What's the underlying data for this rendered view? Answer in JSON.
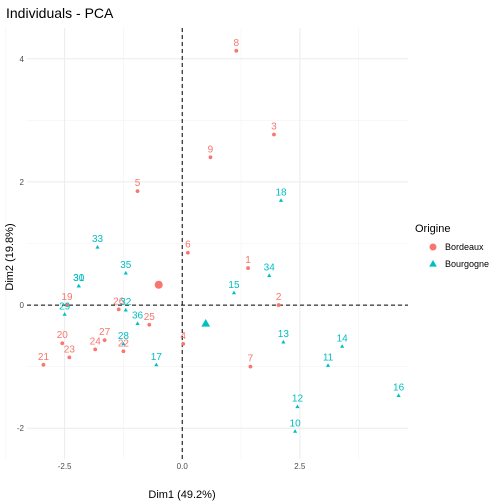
{
  "chart_data": {
    "type": "scatter",
    "title": "Individuals - PCA",
    "xlabel": "Dim1 (49.2%)",
    "ylabel": "Dim2 (19.8%)",
    "xlim": [
      -3.3,
      4.8
    ],
    "ylim": [
      -2.5,
      4.5
    ],
    "xticks": [
      -2.5,
      0.0,
      2.5
    ],
    "yticks": [
      -2,
      0,
      2,
      4
    ],
    "xtick_labels": [
      "-2.5",
      "0.0",
      "2.5"
    ],
    "ytick_labels": [
      "-2",
      "0",
      "2",
      "4"
    ],
    "grid": true,
    "reference_lines": {
      "x": 0,
      "y": 0
    },
    "legend": {
      "title": "Origine",
      "position": "right",
      "entries": [
        "Bordeaux",
        "Bourgogne"
      ]
    },
    "groups": [
      {
        "name": "Bordeaux",
        "color": "#F8766D",
        "marker": "circle",
        "points": [
          {
            "label": "1",
            "x": 1.4,
            "y": 0.6
          },
          {
            "label": "2",
            "x": 2.05,
            "y": 0.0
          },
          {
            "label": "3",
            "x": 1.95,
            "y": 2.77
          },
          {
            "label": "4",
            "x": 0.02,
            "y": -0.63
          },
          {
            "label": "5",
            "x": -0.95,
            "y": 1.85
          },
          {
            "label": "6",
            "x": 0.12,
            "y": 0.85
          },
          {
            "label": "7",
            "x": 1.45,
            "y": -1.0
          },
          {
            "label": "8",
            "x": 1.15,
            "y": 4.13
          },
          {
            "label": "9",
            "x": 0.6,
            "y": 2.4
          },
          {
            "label": "19",
            "x": -2.45,
            "y": 0.0
          },
          {
            "label": "20",
            "x": -2.55,
            "y": -0.62
          },
          {
            "label": "21",
            "x": -2.95,
            "y": -0.97
          },
          {
            "label": "22",
            "x": -1.25,
            "y": -0.75
          },
          {
            "label": "23",
            "x": -2.4,
            "y": -0.85
          },
          {
            "label": "24",
            "x": -1.85,
            "y": -0.72
          },
          {
            "label": "25",
            "x": -0.7,
            "y": -0.32
          },
          {
            "label": "26",
            "x": -1.35,
            "y": -0.07
          },
          {
            "label": "27",
            "x": -1.65,
            "y": -0.57
          }
        ],
        "centroid": {
          "x": -0.5,
          "y": 0.33
        }
      },
      {
        "name": "Bourgogne",
        "color": "#00BFC4",
        "marker": "triangle",
        "points": [
          {
            "label": "10",
            "x": 2.4,
            "y": -2.05
          },
          {
            "label": "11",
            "x": 3.1,
            "y": -0.98
          },
          {
            "label": "12",
            "x": 2.45,
            "y": -1.65
          },
          {
            "label": "13",
            "x": 2.15,
            "y": -0.6
          },
          {
            "label": "14",
            "x": 3.4,
            "y": -0.67
          },
          {
            "label": "15",
            "x": 1.1,
            "y": 0.2
          },
          {
            "label": "16",
            "x": 4.6,
            "y": -1.47
          },
          {
            "label": "17",
            "x": -0.55,
            "y": -0.97
          },
          {
            "label": "18",
            "x": 2.1,
            "y": 1.7
          },
          {
            "label": "28",
            "x": -1.25,
            "y": -0.63
          },
          {
            "label": "29",
            "x": -2.5,
            "y": -0.15
          },
          {
            "label": "30",
            "x": -2.2,
            "y": 0.31
          },
          {
            "label": "31",
            "x": -2.2,
            "y": 0.31
          },
          {
            "label": "32",
            "x": -1.2,
            "y": -0.08
          },
          {
            "label": "33",
            "x": -1.8,
            "y": 0.94
          },
          {
            "label": "34",
            "x": 1.85,
            "y": 0.48
          },
          {
            "label": "35",
            "x": -1.2,
            "y": 0.52
          },
          {
            "label": "36",
            "x": -0.95,
            "y": -0.3
          }
        ],
        "centroid": {
          "x": 0.5,
          "y": -0.3
        }
      }
    ]
  }
}
